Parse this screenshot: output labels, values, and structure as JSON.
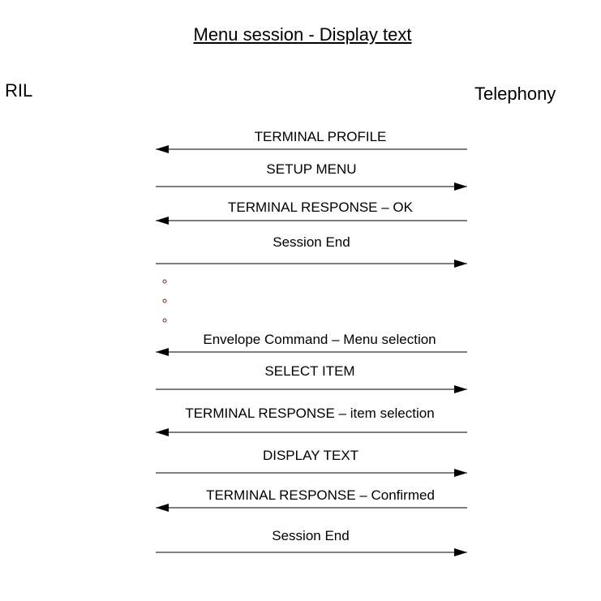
{
  "title": "Menu session - Display text",
  "participants": {
    "left": "RIL",
    "right": "Telephony"
  },
  "messages": [
    {
      "label": "TERMINAL PROFILE",
      "direction": "left"
    },
    {
      "label": "SETUP MENU",
      "direction": "right"
    },
    {
      "label": "TERMINAL RESPONSE – OK",
      "direction": "left"
    },
    {
      "label": "Session End",
      "direction": "right"
    },
    {
      "label": "Envelope Command – Menu selection",
      "direction": "left"
    },
    {
      "label": "SELECT ITEM",
      "direction": "right"
    },
    {
      "label": "TERMINAL RESPONSE – item selection",
      "direction": "left"
    },
    {
      "label": "DISPLAY TEXT",
      "direction": "right"
    },
    {
      "label": "TERMINAL RESPONSE – Confirmed",
      "direction": "left"
    },
    {
      "label": "Session End",
      "direction": "right"
    }
  ],
  "ellipsis_dots": 3,
  "colors": {
    "line": "#000000",
    "dot": "#8b2a1a"
  }
}
